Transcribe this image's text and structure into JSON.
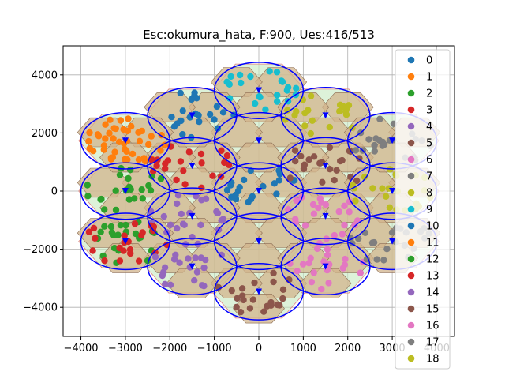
{
  "chart_data": {
    "type": "scatter",
    "title": "Esc:okumura_hata, F:900, Ues:416/513",
    "xlabel": "",
    "ylabel": "",
    "xlim": [
      -4400,
      4400
    ],
    "ylim": [
      -5000,
      5000
    ],
    "xticks": [
      -4000,
      -3000,
      -2000,
      -1000,
      0,
      1000,
      2000,
      3000,
      4000
    ],
    "yticks": [
      -4000,
      -2000,
      0,
      2000,
      4000
    ],
    "grid": true,
    "legend_position": "right",
    "cell_radius": 1000,
    "coverage_radius": 1000,
    "cell_color": "#d2b48c",
    "coverage_circle_color": "#0000ff",
    "site_marker_color": "#0000ff",
    "series": [
      {
        "name": "0",
        "color": "#1f77b4",
        "site": [
          0,
          0
        ]
      },
      {
        "name": "1",
        "color": "#ff7f0e",
        "site": [
          -3000,
          1732
        ]
      },
      {
        "name": "2",
        "color": "#2ca02c",
        "site": [
          -3000,
          0
        ]
      },
      {
        "name": "3",
        "color": "#d62728",
        "site": [
          -1500,
          866
        ]
      },
      {
        "name": "4",
        "color": "#9467bd",
        "site": [
          -1500,
          -866
        ]
      },
      {
        "name": "5",
        "color": "#8c564b",
        "site": [
          1500,
          866
        ]
      },
      {
        "name": "6",
        "color": "#e377c2",
        "site": [
          1500,
          -866
        ]
      },
      {
        "name": "7",
        "color": "#7f7f7f",
        "site": [
          3000,
          1732
        ]
      },
      {
        "name": "8",
        "color": "#bcbd22",
        "site": [
          1500,
          2598
        ]
      },
      {
        "name": "9",
        "color": "#17becf",
        "site": [
          0,
          3464
        ]
      },
      {
        "name": "10",
        "color": "#1f77b4",
        "site": [
          -1500,
          2598
        ]
      },
      {
        "name": "11",
        "color": "#ff7f0e",
        "site": [
          -3000,
          1732
        ]
      },
      {
        "name": "12",
        "color": "#2ca02c",
        "site": [
          -3000,
          -1732
        ]
      },
      {
        "name": "13",
        "color": "#d62728",
        "site": [
          -3000,
          -1732
        ]
      },
      {
        "name": "14",
        "color": "#9467bd",
        "site": [
          -1500,
          -2598
        ]
      },
      {
        "name": "15",
        "color": "#8c564b",
        "site": [
          0,
          -3464
        ]
      },
      {
        "name": "16",
        "color": "#e377c2",
        "site": [
          1500,
          -2598
        ]
      },
      {
        "name": "17",
        "color": "#7f7f7f",
        "site": [
          3000,
          -1732
        ]
      },
      {
        "name": "18",
        "color": "#bcbd22",
        "site": [
          3000,
          0
        ]
      }
    ],
    "sites": [
      [
        0,
        0
      ],
      [
        0,
        1732
      ],
      [
        0,
        3464
      ],
      [
        0,
        -1732
      ],
      [
        0,
        -3464
      ],
      [
        1500,
        866
      ],
      [
        1500,
        2598
      ],
      [
        1500,
        -866
      ],
      [
        1500,
        -2598
      ],
      [
        -1500,
        866
      ],
      [
        -1500,
        2598
      ],
      [
        -1500,
        -866
      ],
      [
        -1500,
        -2598
      ],
      [
        3000,
        0
      ],
      [
        3000,
        1732
      ],
      [
        3000,
        -1732
      ],
      [
        -3000,
        0
      ],
      [
        -3000,
        1732
      ],
      [
        -3000,
        -1732
      ]
    ]
  }
}
